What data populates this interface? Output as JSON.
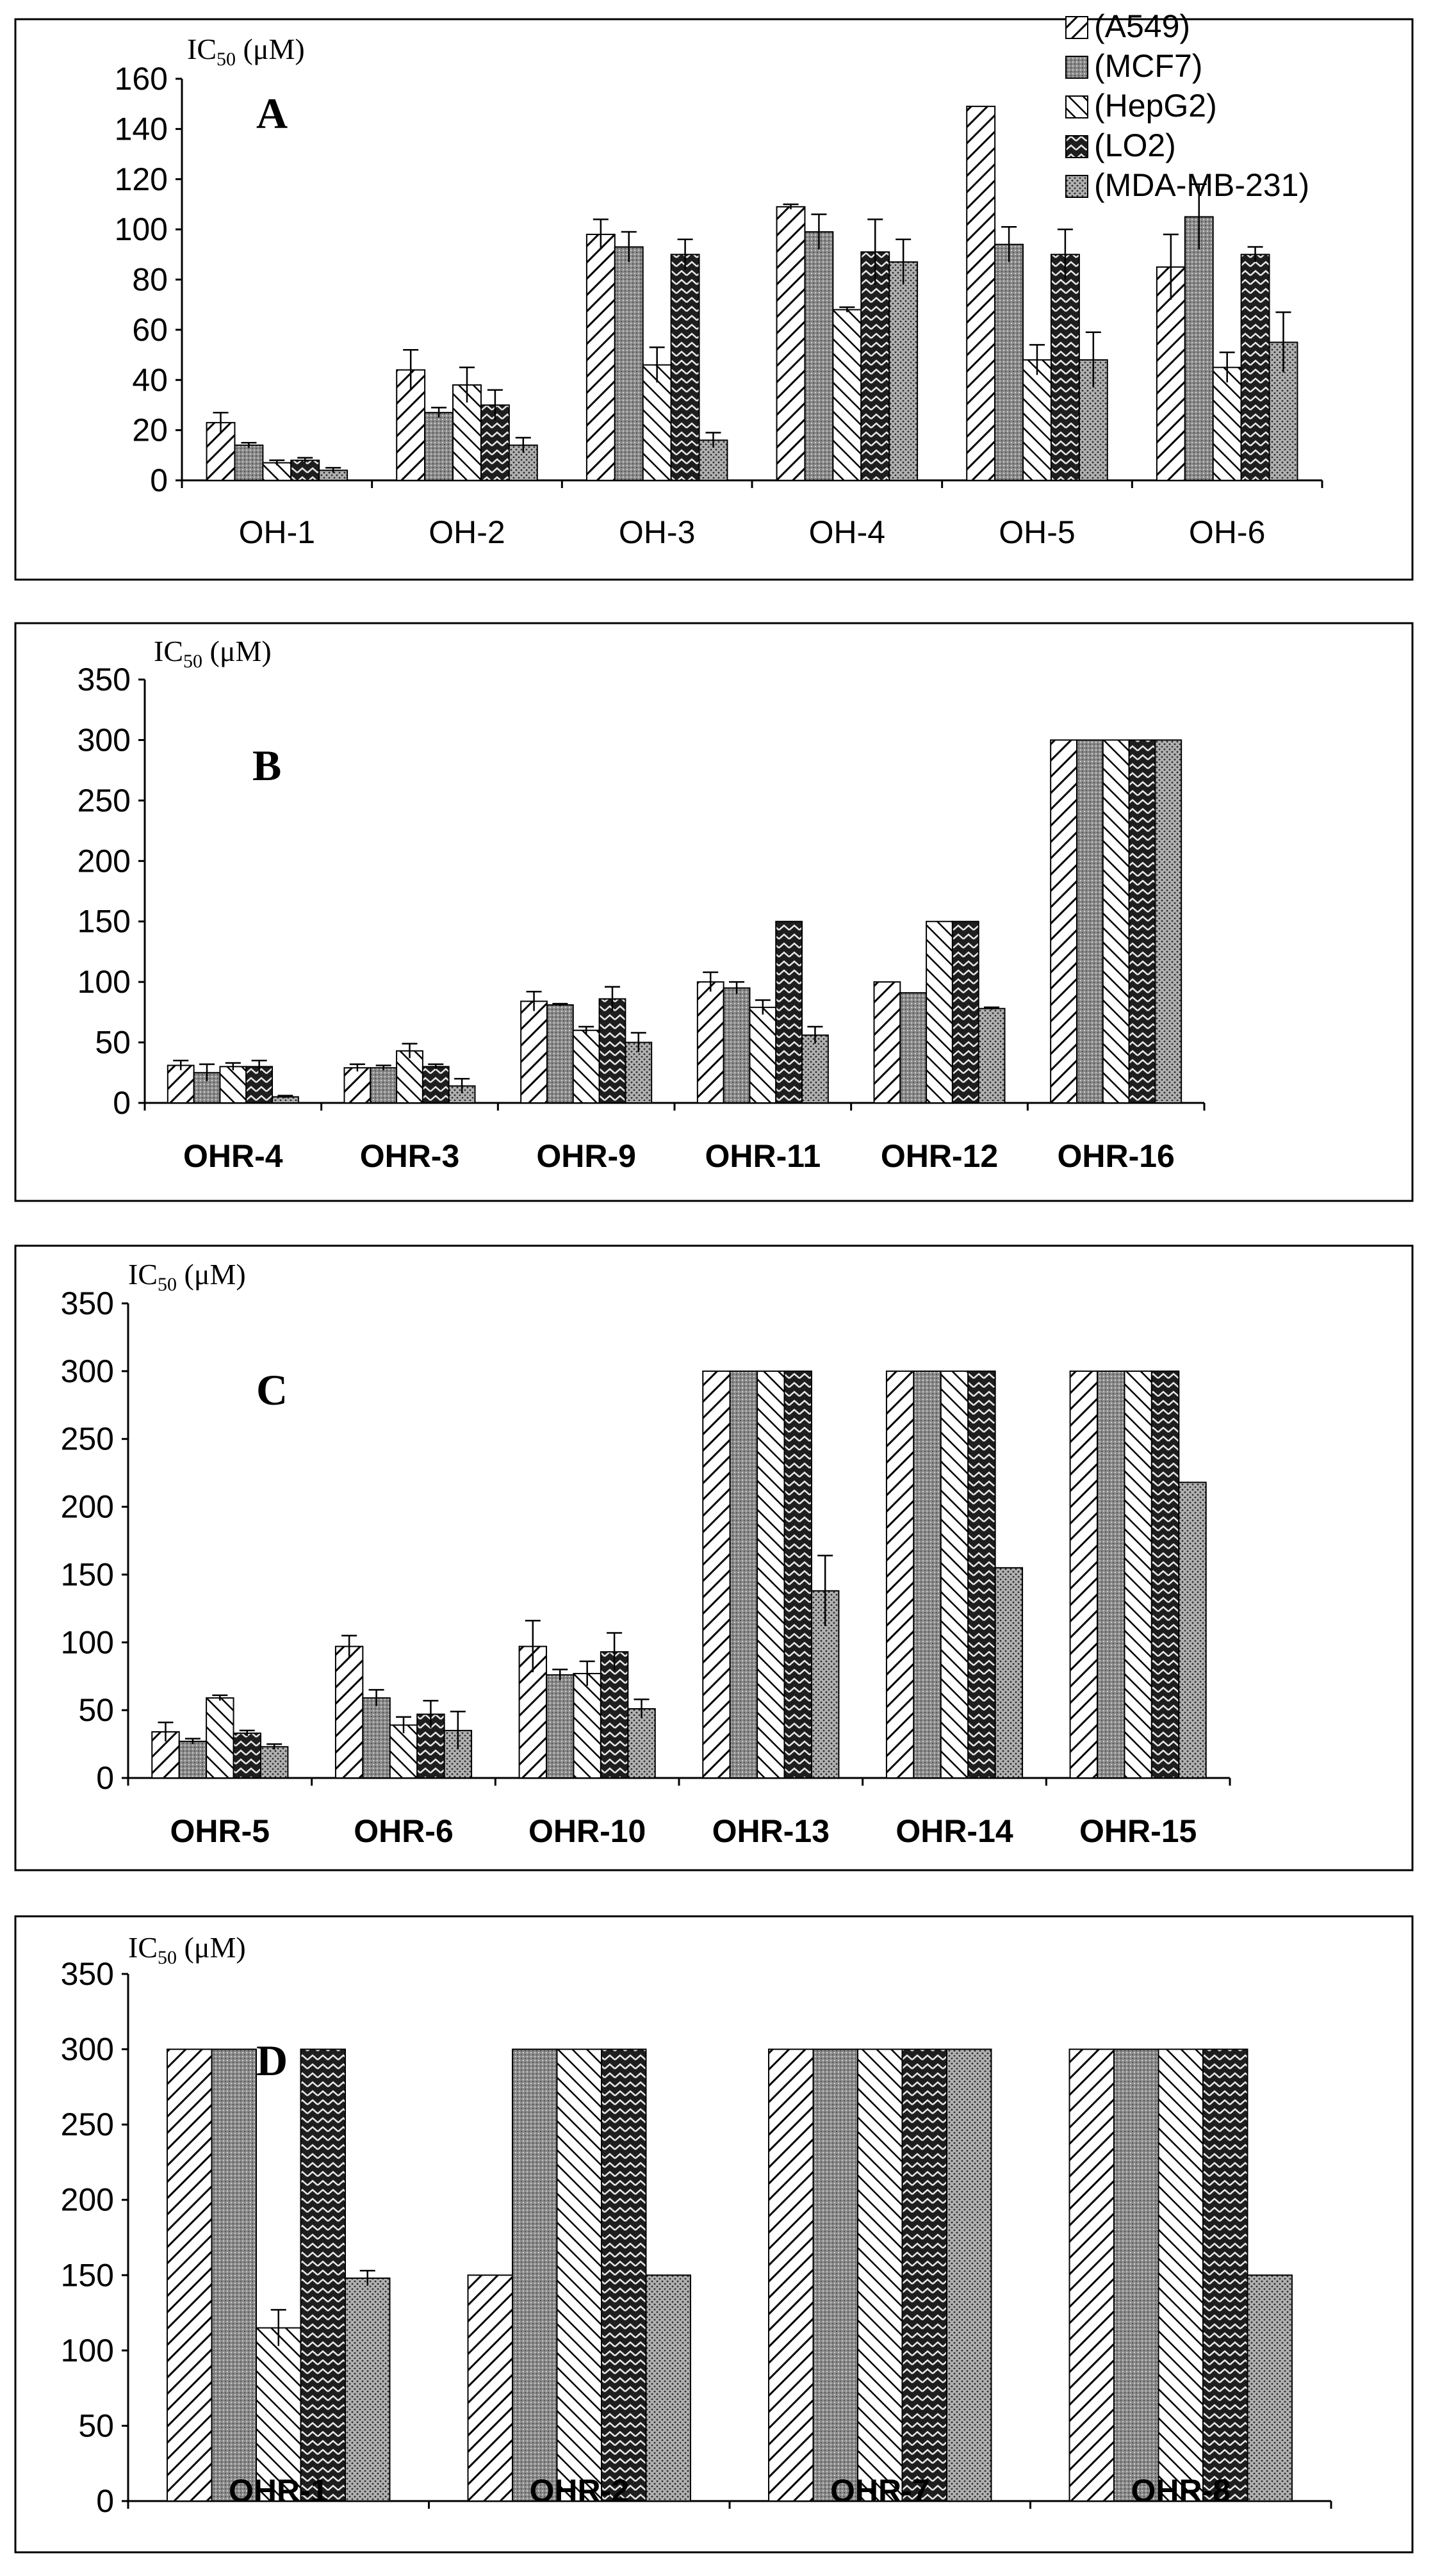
{
  "legend": [
    "(A549)",
    "(MCF7)",
    "(HepG2)",
    "(LO2)",
    "(MDA-MB-231)"
  ],
  "chart_data": [
    {
      "type": "bar",
      "panel": "A",
      "ylabel_main": "IC",
      "ylabel_sub": "50",
      "ylabel_unit": " (μM)",
      "ylim": [
        0,
        160
      ],
      "yticks": [
        0,
        20,
        40,
        60,
        80,
        100,
        120,
        140,
        160
      ],
      "categories": [
        "OH-1",
        "OH-2",
        "OH-3",
        "OH-4",
        "OH-5",
        "OH-6"
      ],
      "series": [
        {
          "name": "(A549)",
          "values": [
            23,
            44,
            98,
            109,
            149,
            85
          ],
          "errors": [
            4,
            8,
            6,
            1,
            0,
            13
          ]
        },
        {
          "name": "(MCF7)",
          "values": [
            14,
            27,
            93,
            99,
            94,
            105
          ],
          "errors": [
            1,
            2,
            6,
            7,
            7,
            13
          ]
        },
        {
          "name": "(HepG2)",
          "values": [
            7,
            38,
            46,
            68,
            48,
            45
          ],
          "errors": [
            1,
            7,
            7,
            1,
            6,
            6
          ]
        },
        {
          "name": "(LO2)",
          "values": [
            8,
            30,
            90,
            91,
            90,
            90
          ],
          "errors": [
            1,
            6,
            6,
            13,
            10,
            3
          ]
        },
        {
          "name": "(MDA-MB-231)",
          "values": [
            4,
            14,
            16,
            87,
            48,
            55
          ],
          "errors": [
            1,
            3,
            3,
            9,
            11,
            12
          ]
        }
      ]
    },
    {
      "type": "bar",
      "panel": "B",
      "ylabel_main": "IC",
      "ylabel_sub": "50",
      "ylabel_unit": " (μM)",
      "ylim": [
        0,
        350
      ],
      "yticks": [
        0,
        50,
        100,
        150,
        200,
        250,
        300,
        350
      ],
      "categories": [
        "OHR-4",
        "OHR-3",
        "OHR-9",
        "OHR-11",
        "OHR-12",
        "OHR-16"
      ],
      "series": [
        {
          "name": "(A549)",
          "values": [
            31,
            29,
            84,
            100,
            100,
            300
          ],
          "errors": [
            4,
            3,
            8,
            8,
            0,
            0
          ]
        },
        {
          "name": "(MCF7)",
          "values": [
            25,
            29,
            81,
            95,
            91,
            300
          ],
          "errors": [
            7,
            2,
            1,
            5,
            0,
            0
          ]
        },
        {
          "name": "(HepG2)",
          "values": [
            30,
            43,
            60,
            79,
            150,
            300
          ],
          "errors": [
            3,
            6,
            3,
            6,
            0,
            0
          ]
        },
        {
          "name": "(LO2)",
          "values": [
            30,
            30,
            86,
            150,
            150,
            300
          ],
          "errors": [
            5,
            2,
            10,
            0,
            0,
            0
          ]
        },
        {
          "name": "(MDA-MB-231)",
          "values": [
            5,
            14,
            50,
            56,
            78,
            300
          ],
          "errors": [
            1,
            6,
            8,
            7,
            1,
            0
          ]
        }
      ]
    },
    {
      "type": "bar",
      "panel": "C",
      "ylabel_main": "IC",
      "ylabel_sub": "50",
      "ylabel_unit": " (μM)",
      "ylim": [
        0,
        350
      ],
      "yticks": [
        0,
        50,
        100,
        150,
        200,
        250,
        300,
        350
      ],
      "categories": [
        "OHR-5",
        "OHR-6",
        "OHR-10",
        "OHR-13",
        "OHR-14",
        "OHR-15"
      ],
      "series": [
        {
          "name": "(A549)",
          "values": [
            34,
            97,
            97,
            300,
            300,
            300
          ],
          "errors": [
            7,
            8,
            19,
            0,
            0,
            0
          ]
        },
        {
          "name": "(MCF7)",
          "values": [
            27,
            59,
            76,
            300,
            300,
            300
          ],
          "errors": [
            2,
            6,
            4,
            0,
            0,
            0
          ]
        },
        {
          "name": "(HepG2)",
          "values": [
            59,
            39,
            77,
            300,
            300,
            300
          ],
          "errors": [
            2,
            6,
            9,
            0,
            0,
            0
          ]
        },
        {
          "name": "(LO2)",
          "values": [
            33,
            47,
            93,
            300,
            300,
            300
          ],
          "errors": [
            2,
            10,
            14,
            0,
            0,
            0
          ]
        },
        {
          "name": "(MDA-MB-231)",
          "values": [
            23,
            35,
            51,
            138,
            155,
            218
          ],
          "errors": [
            2,
            14,
            7,
            26,
            0,
            0
          ]
        }
      ]
    },
    {
      "type": "bar",
      "panel": "D",
      "ylabel_main": "IC",
      "ylabel_sub": "50",
      "ylabel_unit": " (μM)",
      "ylim": [
        0,
        350
      ],
      "yticks": [
        0,
        50,
        100,
        150,
        200,
        250,
        300,
        350
      ],
      "categories": [
        "OHR-1",
        "OHR-2",
        "OHR-7",
        "OHR-8"
      ],
      "series": [
        {
          "name": "(A549)",
          "values": [
            300,
            150,
            300,
            300
          ],
          "errors": [
            0,
            0,
            0,
            0
          ]
        },
        {
          "name": "(MCF7)",
          "values": [
            300,
            300,
            300,
            300
          ],
          "errors": [
            0,
            0,
            0,
            0
          ]
        },
        {
          "name": "(HepG2)",
          "values": [
            115,
            300,
            300,
            300
          ],
          "errors": [
            12,
            0,
            0,
            0
          ]
        },
        {
          "name": "(LO2)",
          "values": [
            300,
            300,
            300,
            300
          ],
          "errors": [
            0,
            0,
            0,
            0
          ]
        },
        {
          "name": "(MDA-MB-231)",
          "values": [
            148,
            150,
            300,
            150
          ],
          "errors": [
            5,
            0,
            0,
            0
          ]
        }
      ]
    }
  ]
}
